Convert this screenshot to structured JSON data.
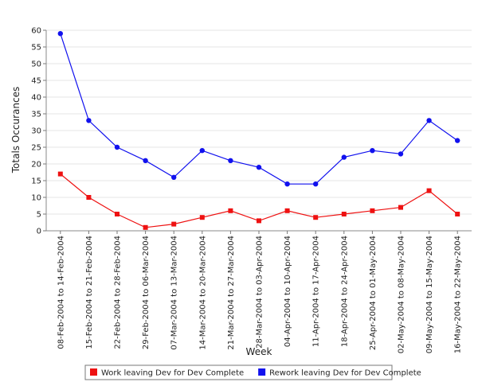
{
  "chart_data": {
    "type": "line",
    "title": "",
    "xlabel": "Week",
    "ylabel": "Totals Occurances",
    "ylim": [
      0,
      60
    ],
    "yticks": [
      0,
      5,
      10,
      15,
      20,
      25,
      30,
      35,
      40,
      45,
      50,
      55,
      60
    ],
    "grid": true,
    "legend": "bottom",
    "categories": [
      "08-Feb-2004 to 14-Feb-2004",
      "15-Feb-2004 to 21-Feb-2004",
      "22-Feb-2004 to 28-Feb-2004",
      "29-Feb-2004 to 06-Mar-2004",
      "07-Mar-2004 to 13-Mar-2004",
      "14-Mar-2004 to 20-Mar-2004",
      "21-Mar-2004 to 27-Mar-2004",
      "28-Mar-2004 to 03-Apr-2004",
      "04-Apr-2004 to 10-Apr-2004",
      "11-Apr-2004 to 17-Apr-2004",
      "18-Apr-2004 to 24-Apr-2004",
      "25-Apr-2004 to 01-May-2004",
      "02-May-2004 to 08-May-2004",
      "09-May-2004 to 15-May-2004",
      "16-May-2004 to 22-May-2004"
    ],
    "series": [
      {
        "name": "Work leaving Dev for Dev Complete",
        "color": "#ee1111",
        "marker": "square",
        "values": [
          17,
          10,
          5,
          1,
          2,
          4,
          6,
          3,
          6,
          4,
          5,
          6,
          7,
          12,
          5
        ]
      },
      {
        "name": "Rework leaving Dev for Dev Complete",
        "color": "#1111ee",
        "marker": "circle",
        "values": [
          59,
          33,
          25,
          21,
          16,
          24,
          21,
          19,
          14,
          14,
          22,
          24,
          23,
          33,
          27
        ]
      }
    ]
  }
}
